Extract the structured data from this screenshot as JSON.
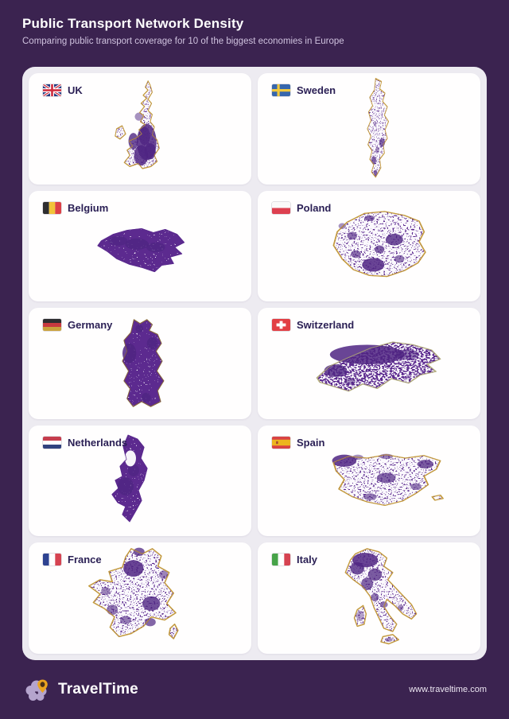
{
  "header": {
    "title": "Public Transport Network Density",
    "subtitle": "Comparing public transport coverage for 10 of the biggest economies in Europe"
  },
  "countries": [
    {
      "id": "uk",
      "label": "UK",
      "flag_icon": "uk-flag-icon"
    },
    {
      "id": "sweden",
      "label": "Sweden",
      "flag_icon": "sweden-flag-icon"
    },
    {
      "id": "belgium",
      "label": "Belgium",
      "flag_icon": "belgium-flag-icon"
    },
    {
      "id": "poland",
      "label": "Poland",
      "flag_icon": "poland-flag-icon"
    },
    {
      "id": "germany",
      "label": "Germany",
      "flag_icon": "germany-flag-icon"
    },
    {
      "id": "switzerland",
      "label": "Switzerland",
      "flag_icon": "switzerland-flag-icon"
    },
    {
      "id": "netherlands",
      "label": "Netherlands",
      "flag_icon": "netherlands-flag-icon"
    },
    {
      "id": "spain",
      "label": "Spain",
      "flag_icon": "spain-flag-icon"
    },
    {
      "id": "france",
      "label": "France",
      "flag_icon": "france-flag-icon"
    },
    {
      "id": "italy",
      "label": "Italy",
      "flag_icon": "italy-flag-icon"
    }
  ],
  "footer": {
    "brand": "TravelTime",
    "url": "www.traveltime.com",
    "logo_icon": "traveltime-pin-splat-icon"
  },
  "colors": {
    "background": "#3b2350",
    "panel": "#edebf1",
    "card": "#ffffff",
    "network_purple": "#5b2b8f",
    "sparse_outline_gold": "#c49b3e",
    "title_text": "#ffffff",
    "subtitle_text": "#cfc2de",
    "label_text": "#2b2055"
  }
}
